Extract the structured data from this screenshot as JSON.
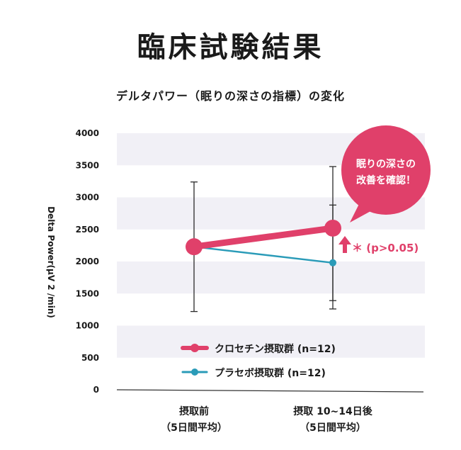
{
  "chart_data": {
    "type": "line",
    "title": "臨床試験結果",
    "subtitle": "デルタパワー（眠りの深さの指標）の変化",
    "ylabel": "Delta Power(μV 2 /min)",
    "ylim": [
      0,
      4000
    ],
    "yticks": [
      "0",
      "500",
      "1000",
      "1500",
      "2000",
      "2500",
      "3000",
      "3500",
      "4000"
    ],
    "categories": [
      {
        "line1": "摂取前",
        "line2": "（5日間平均）"
      },
      {
        "line1": "摂取 10~14日後",
        "line2": "（5日間平均）"
      }
    ],
    "series": [
      {
        "name": "クロセチン摂取群 (n=12)",
        "color": "#e0406a",
        "values": [
          2230,
          2520
        ],
        "err_low": [
          1220,
          1260
        ],
        "err_high": [
          3240,
          3480
        ]
      },
      {
        "name": "プラセボ摂取群 (n=12)",
        "color": "#2a9bb8",
        "values": [
          2230,
          1980
        ],
        "err_low": [
          1220,
          1390
        ],
        "err_high": [
          3240,
          2880
        ]
      }
    ],
    "annotations": {
      "callout": [
        "眠りの深さの",
        "改善を確認！"
      ],
      "significance": "＊ (p>0.05)"
    },
    "grid": "bands"
  }
}
